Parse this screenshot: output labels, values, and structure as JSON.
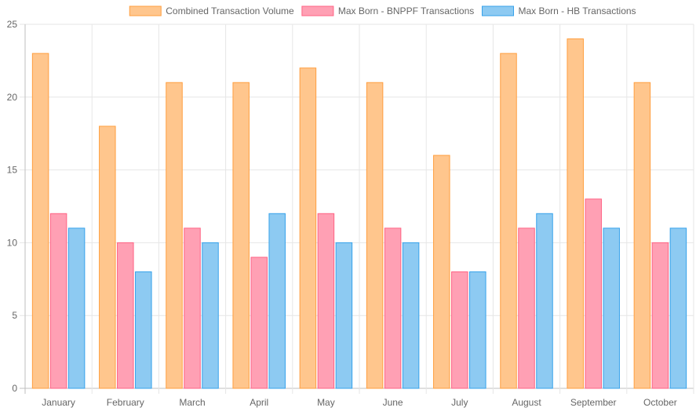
{
  "chart_data": {
    "type": "bar",
    "categories": [
      "January",
      "February",
      "March",
      "April",
      "May",
      "June",
      "July",
      "August",
      "September",
      "October"
    ],
    "series": [
      {
        "name": "Combined Transaction Volume",
        "values": [
          23,
          18,
          21,
          21,
          22,
          21,
          16,
          23,
          24,
          21
        ],
        "fill": "#ffc68d",
        "stroke": "#ff9f40"
      },
      {
        "name": "Max Born - BNPPF Transactions",
        "values": [
          12,
          10,
          11,
          9,
          12,
          11,
          8,
          11,
          13,
          10
        ],
        "fill": "#ffa0b4",
        "stroke": "#ff6384"
      },
      {
        "name": "Max Born - HB Transactions",
        "values": [
          11,
          8,
          10,
          12,
          10,
          10,
          8,
          12,
          11,
          11
        ],
        "fill": "#8dcaf2",
        "stroke": "#36a2eb"
      }
    ],
    "ylim": [
      0,
      25
    ],
    "yticks": [
      0,
      5,
      10,
      15,
      20,
      25
    ],
    "grid": true,
    "legend_position": "top-right",
    "grid_color": "#e6e6e6"
  }
}
